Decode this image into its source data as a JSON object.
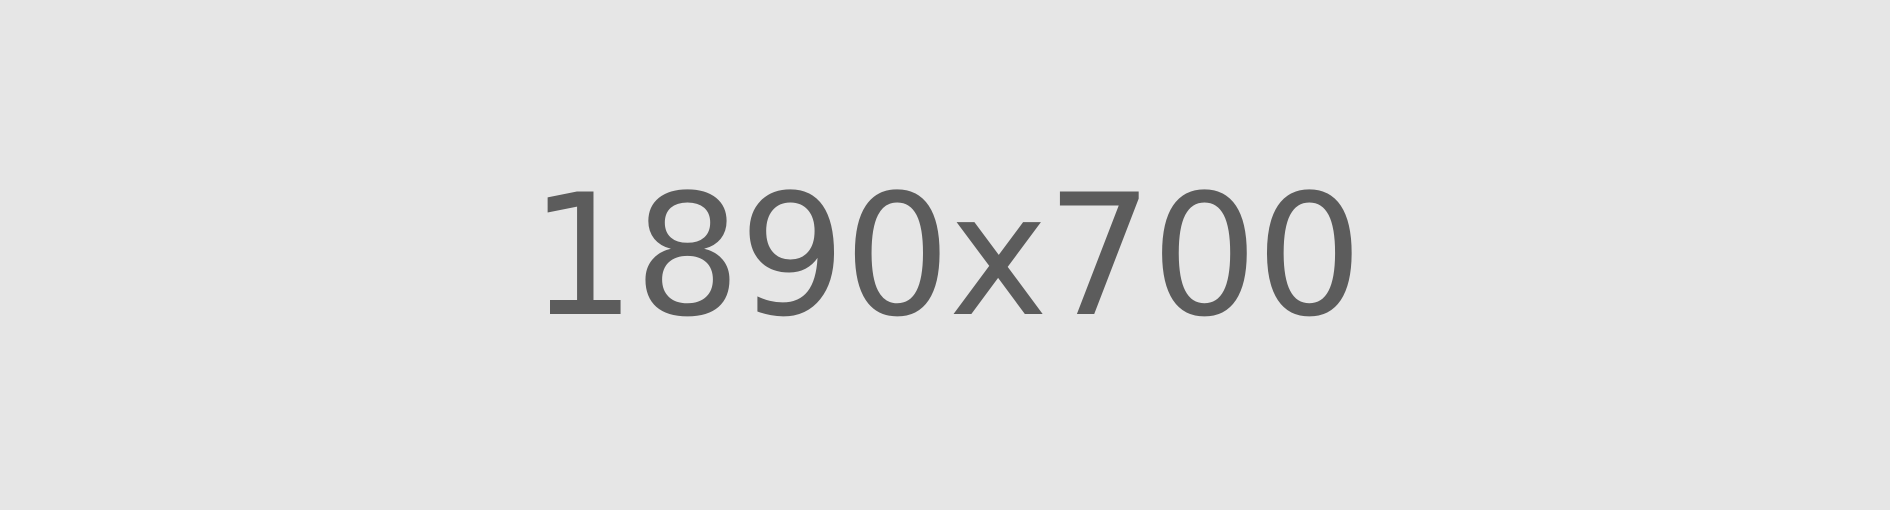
{
  "placeholder": {
    "label": "1890x700",
    "background_color": "#e6e6e6",
    "text_color": "#5c5c5c"
  }
}
